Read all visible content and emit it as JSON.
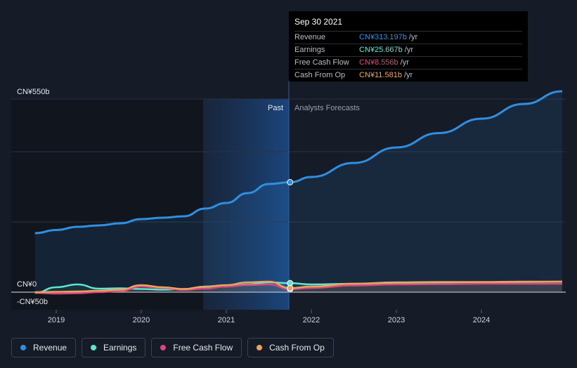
{
  "chart_data": {
    "type": "line",
    "y_axis": {
      "top_label": "CN¥550b",
      "zero_label": "CN¥0",
      "bottom_label": "-CN¥50b",
      "ylim": [
        -50,
        550
      ]
    },
    "x_axis": {
      "ticks": [
        "2019",
        "2020",
        "2021",
        "2022",
        "2023",
        "2024"
      ]
    },
    "regions": {
      "past_label": "Past",
      "forecast_label": "Analysts Forecasts"
    },
    "series": [
      {
        "name": "Revenue",
        "color": "#2f8fe0",
        "x": [
          2018.75,
          2019.0,
          2019.25,
          2019.5,
          2019.75,
          2020.0,
          2020.25,
          2020.5,
          2020.75,
          2021.0,
          2021.25,
          2021.5,
          2021.75,
          2022.0,
          2022.5,
          2023.0,
          2023.5,
          2024.0,
          2024.5,
          2024.95
        ],
        "values": [
          168,
          177,
          186,
          190,
          196,
          208,
          212,
          216,
          238,
          254,
          282,
          308,
          313,
          328,
          368,
          412,
          453,
          494,
          536,
          572
        ]
      },
      {
        "name": "Earnings",
        "color": "#5ee6d0",
        "x": [
          2018.75,
          2019.0,
          2019.25,
          2019.5,
          2019.75,
          2020.0,
          2020.25,
          2020.5,
          2020.75,
          2021.0,
          2021.25,
          2021.5,
          2021.75,
          2022.0,
          2022.5,
          2023.0,
          2023.5,
          2024.0,
          2024.5,
          2024.95
        ],
        "values": [
          -2,
          14,
          22,
          10,
          11,
          9,
          7,
          9,
          12,
          16,
          22,
          28,
          25.667,
          22,
          24,
          26,
          27,
          28,
          29,
          30
        ]
      },
      {
        "name": "Free Cash Flow",
        "color": "#d9477e",
        "x": [
          2018.75,
          2019.0,
          2019.25,
          2019.5,
          2019.75,
          2020.0,
          2020.25,
          2020.5,
          2020.75,
          2021.0,
          2021.25,
          2021.5,
          2021.75,
          2022.0,
          2022.5,
          2023.0,
          2023.5,
          2024.0,
          2024.5,
          2024.95
        ],
        "values": [
          -2,
          -4,
          -3,
          0,
          3,
          16,
          12,
          6,
          10,
          16,
          20,
          22,
          8.556,
          12,
          19,
          22,
          23,
          24,
          24,
          24
        ]
      },
      {
        "name": "Cash From Op",
        "color": "#e9a45a",
        "x": [
          2018.75,
          2019.0,
          2019.25,
          2019.5,
          2019.75,
          2020.0,
          2020.25,
          2020.5,
          2020.75,
          2021.0,
          2021.25,
          2021.5,
          2021.75,
          2022.0,
          2022.5,
          2023.0,
          2023.5,
          2024.0,
          2024.5,
          2024.95
        ],
        "values": [
          0,
          1,
          2,
          4,
          7,
          20,
          14,
          9,
          16,
          20,
          28,
          30,
          11.581,
          16,
          24,
          28,
          29,
          29,
          30,
          30
        ]
      }
    ],
    "highlight": {
      "date": "Sep 30 2021",
      "x": 2021.75
    }
  },
  "tooltip": {
    "date": "Sep 30 2021",
    "rows": [
      {
        "label": "Revenue",
        "value": "CN¥313.197b",
        "unit": "/yr",
        "color": "#2f8fe0"
      },
      {
        "label": "Earnings",
        "value": "CN¥25.667b",
        "unit": "/yr",
        "color": "#5ee6d0"
      },
      {
        "label": "Free Cash Flow",
        "value": "CN¥8.556b",
        "unit": "/yr",
        "color": "#d9477e"
      },
      {
        "label": "Cash From Op",
        "value": "CN¥11.581b",
        "unit": "/yr",
        "color": "#e9a45a"
      }
    ]
  },
  "legend": [
    {
      "label": "Revenue",
      "color": "#2f8fe0"
    },
    {
      "label": "Earnings",
      "color": "#5ee6d0"
    },
    {
      "label": "Free Cash Flow",
      "color": "#d9477e"
    },
    {
      "label": "Cash From Op",
      "color": "#e9a45a"
    }
  ]
}
